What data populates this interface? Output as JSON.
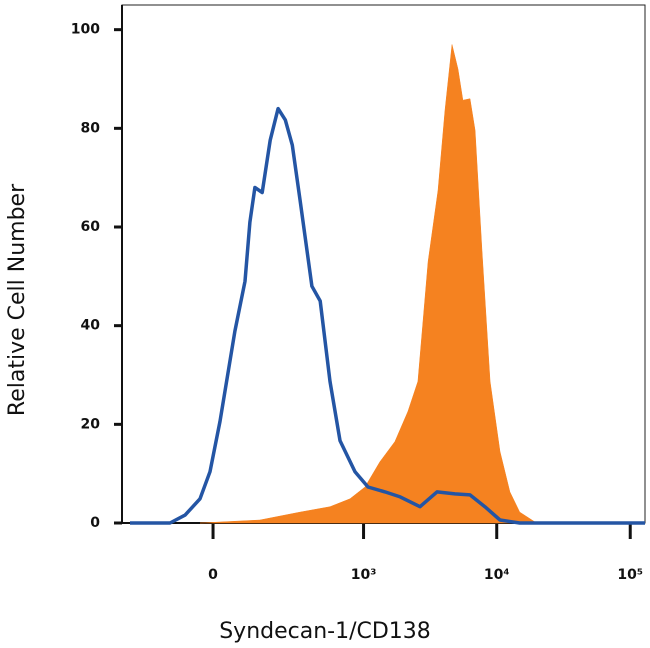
{
  "chart_data": {
    "type": "histogram-overlay",
    "x_label": "Syndecan-1/CD138",
    "y_label": "Relative Cell Number",
    "xscale": "biexponential",
    "xlim": [
      -345,
      129000
    ],
    "xticks": [
      0,
      {
        "value": 1000,
        "label": "10³"
      },
      {
        "value": 10000,
        "label": "10⁴"
      },
      {
        "value": 100000,
        "label": "10⁵"
      }
    ],
    "ylim": [
      0,
      105
    ],
    "yticks": [
      0,
      20,
      40,
      60,
      80,
      100
    ],
    "series": [
      {
        "color": "#f58220",
        "fill": true,
        "x": [
          -34,
          135,
          320,
          554,
          789,
          1025,
          1330,
          1725,
          2160,
          2565,
          3060,
          3630,
          4094,
          4620,
          5130,
          5580,
          6300,
          6880,
          7750,
          8920,
          10575,
          12550,
          14860,
          19350,
          29700,
          129000
        ],
        "values": [
          0,
          0.6,
          2.2,
          3.3,
          4.9,
          7.3,
          12.4,
          16.5,
          22.6,
          28.7,
          53,
          67.4,
          83.7,
          97,
          92,
          85.7,
          86,
          79.6,
          55.2,
          28.7,
          14.5,
          6.3,
          2.2,
          0.2,
          0,
          0
        ]
      },
      {
        "color": "#2455a4",
        "fill": false,
        "x": [
          -296,
          -122,
          -75,
          -34,
          -8,
          18,
          58,
          87,
          102,
          118,
          143,
          173,
          206,
          239,
          275,
          320,
          399,
          464,
          554,
          661,
          861,
          1080,
          1452,
          1890,
          2660,
          3570,
          4860,
          6300,
          8160,
          10575,
          14860,
          129000
        ],
        "values": [
          0,
          0,
          1.6,
          4.9,
          10.4,
          20.6,
          38.9,
          49,
          61,
          68,
          67,
          77.6,
          84,
          81.7,
          76.6,
          65.4,
          48,
          45,
          28.7,
          16.7,
          10.4,
          7.3,
          6.3,
          5.3,
          3.3,
          6.3,
          5.9,
          5.7,
          3.3,
          0.6,
          0,
          0
        ]
      }
    ]
  }
}
